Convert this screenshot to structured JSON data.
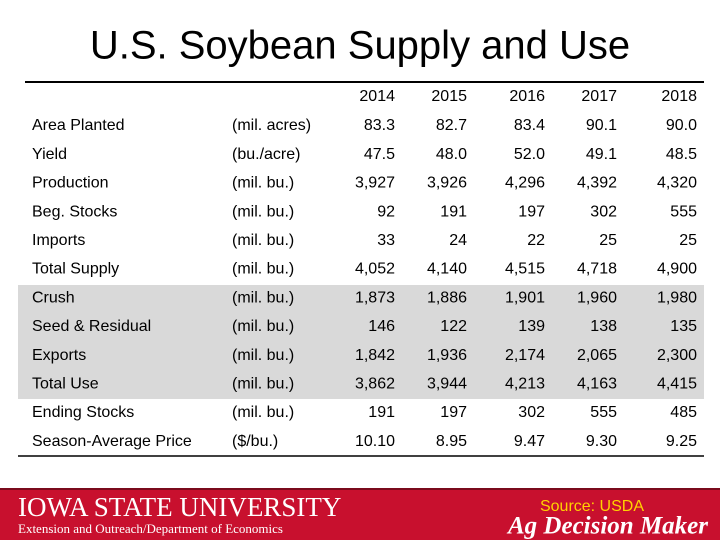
{
  "header": {
    "title": "U.S. Soybean Supply and Use"
  },
  "table": {
    "columns": [
      "2014",
      "2015",
      "2016",
      "2017",
      "2018"
    ],
    "rows": [
      [
        "Area Planted",
        "(mil. acres)",
        "83.3",
        "82.7",
        "83.4",
        "90.1",
        "90.0"
      ],
      [
        "Yield",
        "(bu./acre)",
        "47.5",
        "48.0",
        "52.0",
        "49.1",
        "48.5"
      ],
      [
        "Production",
        "(mil. bu.)",
        "3,927",
        "3,926",
        "4,296",
        "4,392",
        "4,320"
      ],
      [
        "Beg. Stocks",
        "(mil. bu.)",
        "92",
        "191",
        "197",
        "302",
        "555"
      ],
      [
        "Imports",
        "(mil. bu.)",
        "33",
        "24",
        "22",
        "25",
        "25"
      ],
      [
        "Total Supply",
        "(mil. bu.)",
        "4,052",
        "4,140",
        "4,515",
        "4,718",
        "4,900"
      ],
      [
        "Crush",
        "(mil. bu.)",
        "1,873",
        "1,886",
        "1,901",
        "1,960",
        "1,980"
      ],
      [
        "Seed & Residual",
        "(mil. bu.)",
        "146",
        "122",
        "139",
        "138",
        "135"
      ],
      [
        "Exports",
        "(mil. bu.)",
        "1,842",
        "1,936",
        "2,174",
        "2,065",
        "2,300"
      ],
      [
        "Total Use",
        "(mil. bu.)",
        "3,862",
        "3,944",
        "4,213",
        "4,163",
        "4,415"
      ],
      [
        "Ending Stocks",
        "(mil. bu.)",
        "191",
        "197",
        "302",
        "555",
        "485"
      ],
      [
        "Season-Average Price",
        "($/bu.)",
        "10.10",
        "8.95",
        "9.47",
        "9.30",
        "9.25"
      ]
    ]
  },
  "footer": {
    "university": "IOWA STATE UNIVERSITY",
    "department": "Extension and Outreach/Department of Economics",
    "source": "Source: USDA",
    "brand": "Ag Decision Maker"
  }
}
